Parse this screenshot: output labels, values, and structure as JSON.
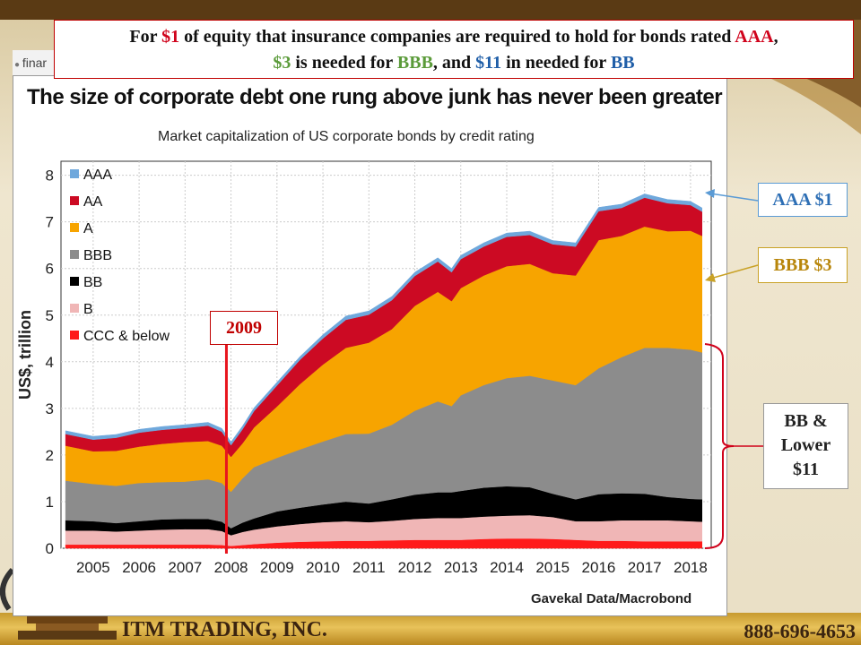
{
  "banner": {
    "part1": "For ",
    "aaa_cost": "$1",
    "part2": " of equity that insurance companies are required to hold for bonds rated ",
    "aaa_label": "AAA",
    "part3": ",",
    "bbb_cost": "$3",
    "part4": " is needed for ",
    "bbb_label": "BBB",
    "part5": ", and ",
    "bb_cost": "$11",
    "part6": " in needed for ",
    "bb_label": "BB"
  },
  "browser_tab_text": "finar",
  "callouts": {
    "aaa": "AAA $1",
    "bbb": "BBB $3",
    "bb_line1": "BB &",
    "bb_line2": "Lower",
    "bb_line3": "$11",
    "year_2009": "2009"
  },
  "footer": {
    "company": "ITM TRADING, INC.",
    "phone": "888-696-4653"
  },
  "colors": {
    "AAA": "#6fa8dc",
    "AA": "#cc0a23",
    "A": "#f7a400",
    "BBB": "#8c8c8c",
    "BB": "#000000",
    "B": "#f0b6b6",
    "CCC & below": "#ff1a1a",
    "marker": "#e8141e"
  },
  "chart_data": {
    "type": "area",
    "stacked": true,
    "title": "The size of corporate debt one rung above junk has never been greater",
    "subtitle": "Market capitalization of US corporate bonds by credit rating",
    "ylabel": "US$, trillion",
    "xlabel": "",
    "source": "Gavekal Data/Macrobond",
    "ylim": [
      0,
      8.3
    ],
    "yticks": [
      0,
      1,
      2,
      3,
      4,
      5,
      6,
      7,
      8
    ],
    "xlim": [
      2004.8,
      2018.95
    ],
    "xticks": [
      "2005",
      "2006",
      "2007",
      "2008",
      "2009",
      "2010",
      "2011",
      "2012",
      "2013",
      "2014",
      "2015",
      "2016",
      "2017",
      "2018"
    ],
    "grid": true,
    "legend_position": "top-left",
    "x": [
      2004.9,
      2005.5,
      2006.0,
      2006.5,
      2007.0,
      2007.5,
      2008.0,
      2008.3,
      2008.5,
      2008.75,
      2009.0,
      2009.5,
      2010.0,
      2010.5,
      2011.0,
      2011.5,
      2012.0,
      2012.5,
      2013.0,
      2013.3,
      2013.5,
      2014.0,
      2014.5,
      2015.0,
      2015.5,
      2016.0,
      2016.5,
      2017.0,
      2017.5,
      2018.0,
      2018.5,
      2018.75
    ],
    "series": [
      {
        "name": "CCC & below",
        "values": [
          0.08,
          0.08,
          0.08,
          0.08,
          0.08,
          0.08,
          0.08,
          0.07,
          0.05,
          0.07,
          0.09,
          0.12,
          0.14,
          0.15,
          0.16,
          0.16,
          0.17,
          0.18,
          0.18,
          0.18,
          0.18,
          0.2,
          0.21,
          0.21,
          0.2,
          0.18,
          0.16,
          0.16,
          0.15,
          0.15,
          0.15,
          0.15
        ]
      },
      {
        "name": "B",
        "values": [
          0.3,
          0.3,
          0.28,
          0.3,
          0.32,
          0.33,
          0.33,
          0.3,
          0.23,
          0.28,
          0.31,
          0.35,
          0.38,
          0.41,
          0.42,
          0.4,
          0.42,
          0.45,
          0.47,
          0.47,
          0.47,
          0.48,
          0.49,
          0.5,
          0.47,
          0.4,
          0.42,
          0.44,
          0.45,
          0.45,
          0.43,
          0.42
        ]
      },
      {
        "name": "BB",
        "values": [
          0.22,
          0.2,
          0.18,
          0.2,
          0.22,
          0.22,
          0.22,
          0.2,
          0.15,
          0.2,
          0.24,
          0.32,
          0.35,
          0.38,
          0.42,
          0.4,
          0.46,
          0.52,
          0.55,
          0.55,
          0.58,
          0.62,
          0.63,
          0.6,
          0.5,
          0.47,
          0.58,
          0.58,
          0.57,
          0.5,
          0.48,
          0.48
        ]
      },
      {
        "name": "BBB",
        "values": [
          0.85,
          0.8,
          0.8,
          0.82,
          0.8,
          0.8,
          0.85,
          0.83,
          0.78,
          0.95,
          1.1,
          1.15,
          1.25,
          1.35,
          1.45,
          1.5,
          1.6,
          1.8,
          1.95,
          1.85,
          2.05,
          2.2,
          2.32,
          2.39,
          2.43,
          2.45,
          2.7,
          2.92,
          3.13,
          3.2,
          3.2,
          3.15
        ]
      },
      {
        "name": "A",
        "values": [
          0.75,
          0.7,
          0.75,
          0.78,
          0.82,
          0.85,
          0.82,
          0.8,
          0.75,
          0.75,
          0.85,
          1.1,
          1.4,
          1.65,
          1.85,
          1.95,
          2.05,
          2.25,
          2.35,
          2.25,
          2.3,
          2.35,
          2.4,
          2.4,
          2.3,
          2.35,
          2.75,
          2.6,
          2.6,
          2.5,
          2.55,
          2.5
        ]
      },
      {
        "name": "AA",
        "values": [
          0.25,
          0.25,
          0.28,
          0.3,
          0.3,
          0.3,
          0.33,
          0.3,
          0.25,
          0.3,
          0.35,
          0.45,
          0.52,
          0.56,
          0.6,
          0.6,
          0.62,
          0.64,
          0.65,
          0.62,
          0.62,
          0.62,
          0.63,
          0.62,
          0.62,
          0.62,
          0.62,
          0.6,
          0.62,
          0.6,
          0.55,
          0.52
        ]
      },
      {
        "name": "AAA",
        "values": [
          0.07,
          0.07,
          0.07,
          0.07,
          0.07,
          0.07,
          0.07,
          0.07,
          0.07,
          0.07,
          0.07,
          0.07,
          0.07,
          0.08,
          0.08,
          0.08,
          0.08,
          0.08,
          0.08,
          0.08,
          0.08,
          0.08,
          0.08,
          0.08,
          0.08,
          0.08,
          0.08,
          0.08,
          0.08,
          0.08,
          0.08,
          0.08
        ]
      }
    ],
    "annotation_year": 2008.4
  }
}
